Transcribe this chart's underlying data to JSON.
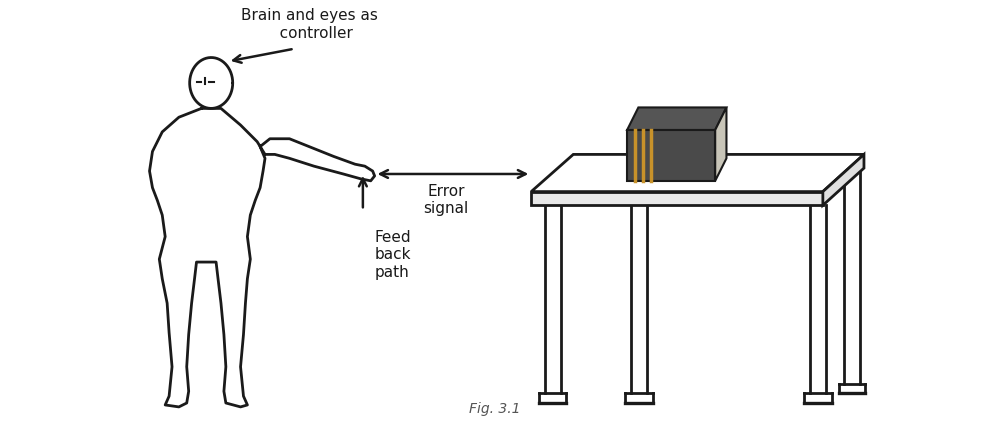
{
  "background_color": "#ffffff",
  "line_color": "#1a1a1a",
  "label_brain": "Brain and eyes as\n   controller",
  "label_error": "Error\nsignal",
  "label_feedback": "Feed\nback\npath",
  "fig_label": "Fig. 3.1",
  "book_color_dark": "#4a4a4a",
  "book_color_spine": "#c8922a",
  "book_color_pages": "#d0cdc0",
  "table_color": "#ffffff",
  "table_line": "#1a1a1a",
  "text_color": "#1a1a1a",
  "arrow_color": "#1a1a1a",
  "figsize": [
    9.9,
    4.22
  ],
  "dpi": 100
}
